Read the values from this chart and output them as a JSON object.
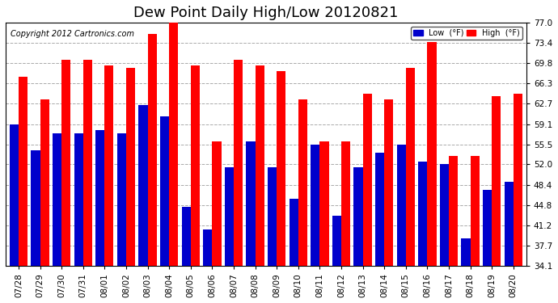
{
  "title": "Dew Point Daily High/Low 20120821",
  "copyright": "Copyright 2012 Cartronics.com",
  "dates": [
    "07/28",
    "07/29",
    "07/30",
    "07/31",
    "08/01",
    "08/02",
    "08/03",
    "08/04",
    "08/05",
    "08/06",
    "08/07",
    "08/08",
    "08/09",
    "08/10",
    "08/11",
    "08/12",
    "08/13",
    "08/14",
    "08/15",
    "08/16",
    "08/17",
    "08/18",
    "08/19",
    "08/20"
  ],
  "high_values": [
    67.5,
    63.5,
    70.5,
    70.5,
    69.5,
    69.0,
    75.0,
    77.0,
    69.5,
    56.0,
    70.5,
    69.5,
    68.5,
    63.5,
    56.0,
    56.0,
    64.5,
    63.5,
    69.0,
    73.5,
    53.5,
    53.5,
    64.0,
    64.5
  ],
  "low_values": [
    59.0,
    54.5,
    57.5,
    57.5,
    58.0,
    57.5,
    62.5,
    60.5,
    44.5,
    40.5,
    51.5,
    56.0,
    51.5,
    46.0,
    55.5,
    43.0,
    51.5,
    54.0,
    55.5,
    52.5,
    52.0,
    39.0,
    47.5,
    49.0
  ],
  "high_color": "#FF0000",
  "low_color": "#0000CC",
  "bg_color": "#FFFFFF",
  "plot_bg_color": "#FFFFFF",
  "grid_color": "#AAAAAA",
  "ylim": [
    34.1,
    77.0
  ],
  "yticks": [
    34.1,
    37.7,
    41.2,
    44.8,
    48.4,
    52.0,
    55.5,
    59.1,
    62.7,
    66.3,
    69.8,
    73.4,
    77.0
  ],
  "title_fontsize": 13,
  "copyright_fontsize": 7,
  "bar_width": 0.42
}
